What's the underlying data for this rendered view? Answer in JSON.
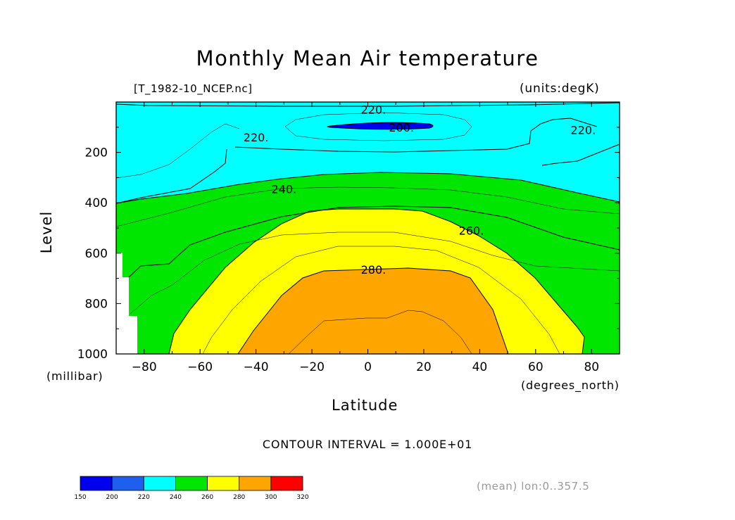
{
  "chart_data": {
    "type": "contour",
    "title": "Monthly Mean Air temperature",
    "source_label": "[T_1982-10_NCEP.nc]",
    "units_label": "(units:degK)",
    "xlabel": "Latitude",
    "xunit": "(degrees_north)",
    "ylabel": "Level",
    "yunit": "(millibar)",
    "xlim": [
      -90,
      90
    ],
    "ylim": [
      1000,
      0
    ],
    "xticks": [
      -80,
      -60,
      -40,
      -20,
      0,
      20,
      40,
      60,
      80
    ],
    "xtick_labels": [
      "−80",
      "−60",
      "−40",
      "−20",
      "0",
      "20",
      "40",
      "60",
      "80"
    ],
    "yticks": [
      200,
      400,
      600,
      800,
      1000
    ],
    "ytick_labels": [
      "200",
      "400",
      "600",
      "800",
      "1000"
    ],
    "contour_interval_text": "CONTOUR INTERVAL = 1.000E+01",
    "contour_labels": [
      {
        "text": "220.",
        "lat": 2,
        "level": 30
      },
      {
        "text": "200.",
        "lat": 12,
        "level": 100
      },
      {
        "text": "220.",
        "lat": -40,
        "level": 140
      },
      {
        "text": "220.",
        "lat": 77,
        "level": 110
      },
      {
        "text": "240.",
        "lat": -30,
        "level": 345
      },
      {
        "text": "260.",
        "lat": 37,
        "level": 510
      },
      {
        "text": "280.",
        "lat": 2,
        "level": 665
      }
    ],
    "colorbar": {
      "bounds": [
        150,
        200,
        220,
        240,
        260,
        280,
        300,
        320
      ],
      "labels": [
        "150",
        "200",
        "220",
        "240",
        "260",
        "280",
        "300",
        "320"
      ],
      "colors": [
        "#0000f0",
        "#1e5ff0",
        "#00ffff",
        "#00e600",
        "#ffff00",
        "#ffa500",
        "#ff0000"
      ]
    },
    "mean_note": "(mean) lon:0..357.5"
  }
}
